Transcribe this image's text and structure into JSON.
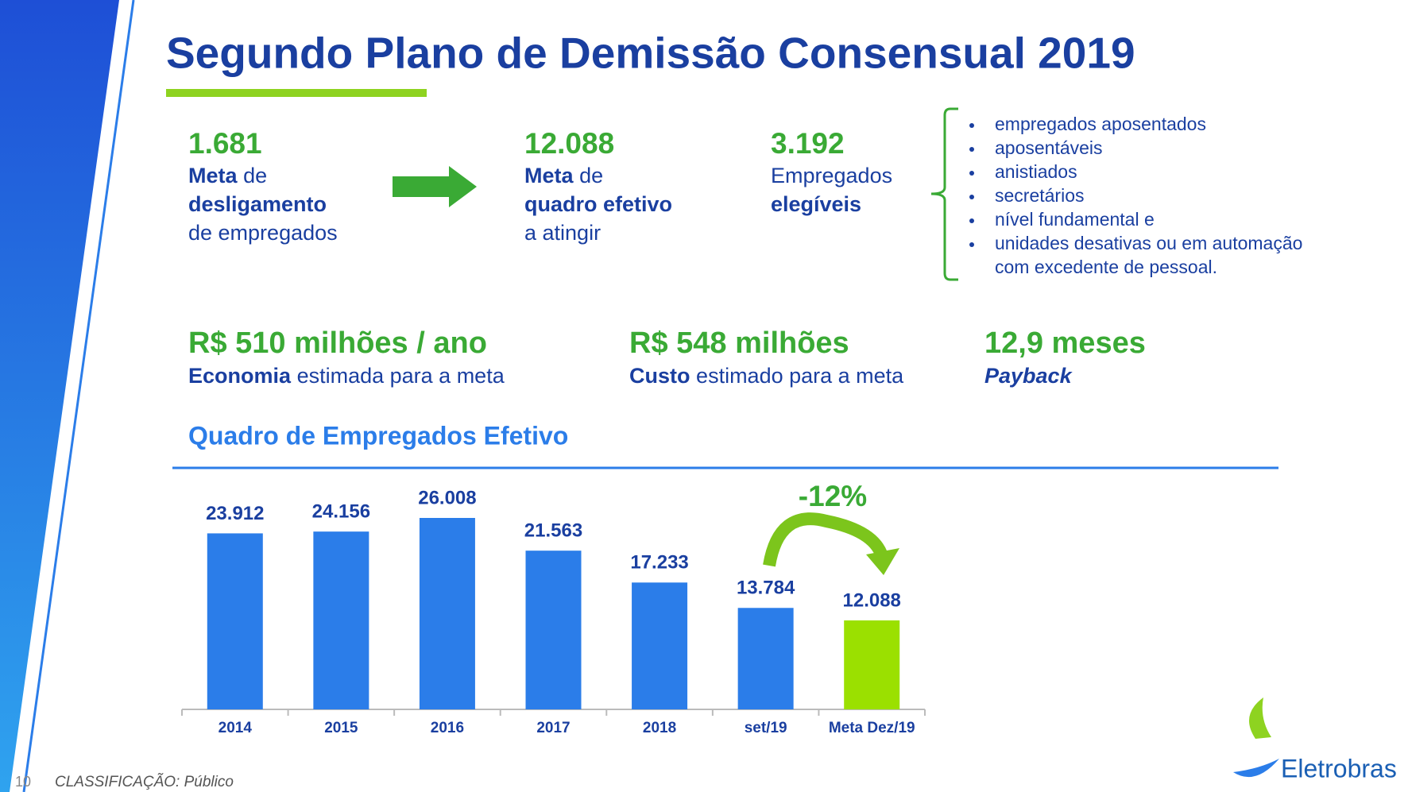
{
  "title": "Segundo Plano de Demissão Consensual 2019",
  "kpis": [
    {
      "number": "1.681",
      "lines": [
        [
          {
            "text": "Meta",
            "bold": true
          },
          {
            "text": "de"
          }
        ],
        [
          {
            "text": "desligamento",
            "bold": true
          }
        ],
        [
          {
            "text": "de empregados"
          }
        ]
      ]
    },
    {
      "number": "12.088",
      "lines": [
        [
          {
            "text": "Meta",
            "bold": true
          },
          {
            "text": "de"
          }
        ],
        [
          {
            "text": "quadro efetivo",
            "bold": true
          }
        ],
        [
          {
            "text": "a atingir"
          }
        ]
      ]
    },
    {
      "number": "3.192",
      "lines": [
        [
          {
            "text": "Empregados"
          }
        ],
        [
          {
            "text": "elegíveis",
            "bold": true
          }
        ]
      ]
    }
  ],
  "bullets": [
    [
      "empregados aposentados"
    ],
    [
      "aposentáveis"
    ],
    [
      "anistiados"
    ],
    [
      "secretários"
    ],
    [
      "nível fundamental e"
    ],
    [
      "unidades desativas ou em automação",
      "com excedente de pessoal."
    ]
  ],
  "summary": [
    {
      "value": "R$ 510 milhões / ano",
      "desc": [
        {
          "text": "Economia",
          "bold": true
        },
        {
          "text": "estimada para a meta"
        }
      ]
    },
    {
      "value": "R$ 548 milhões",
      "desc": [
        {
          "text": "Custo",
          "bold": true
        },
        {
          "text": "estimado para a meta"
        }
      ]
    },
    {
      "value": "12,9 meses",
      "desc": [
        {
          "text": "Payback",
          "bold": true,
          "italic": true
        }
      ]
    }
  ],
  "chart_data": {
    "type": "bar",
    "title": "Quadro de Empregados Efetivo",
    "categories": [
      "2014",
      "2015",
      "2016",
      "2017",
      "2018",
      "set/19",
      "Meta Dez/19"
    ],
    "values": [
      23912,
      24156,
      26008,
      21563,
      17233,
      13784,
      12088
    ],
    "value_labels": [
      "23.912",
      "24.156",
      "26.008",
      "21.563",
      "17.233",
      "13.784",
      "12.088"
    ],
    "colors": [
      "#2b7de9",
      "#2b7de9",
      "#2b7de9",
      "#2b7de9",
      "#2b7de9",
      "#2b7de9",
      "#9be000"
    ],
    "annotation": "-12%"
  },
  "footer": {
    "page": "10",
    "classification": "CLASSIFICAÇÃO: Público",
    "logo": "Eletrobras"
  }
}
